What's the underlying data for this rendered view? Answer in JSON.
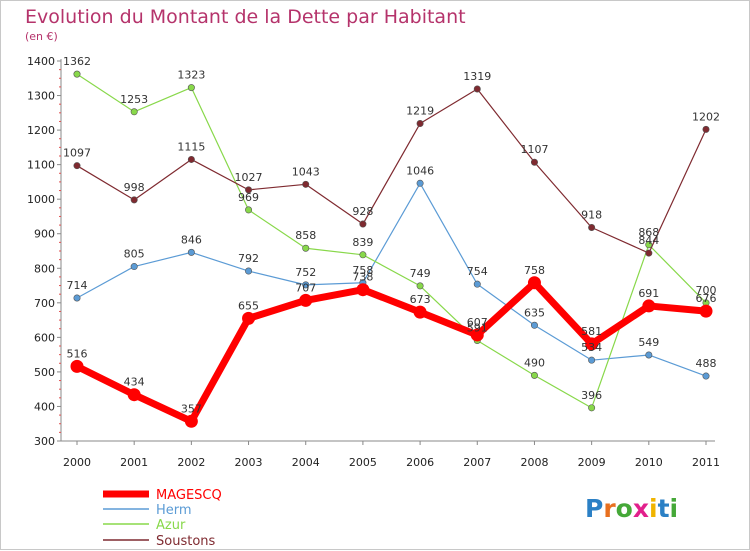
{
  "chart_data": {
    "type": "line",
    "title": "Evolution du Montant de la Dette par Habitant",
    "subtitle": "(en €)",
    "x": [
      "2000",
      "2001",
      "2002",
      "2003",
      "2004",
      "2005",
      "2006",
      "2007",
      "2008",
      "2009",
      "2010",
      "2011"
    ],
    "ylim": [
      300,
      1400
    ],
    "yticks": [
      300,
      400,
      500,
      600,
      700,
      800,
      900,
      1000,
      1100,
      1200,
      1300,
      1400
    ],
    "grid": false,
    "legend_position": "bottom-left",
    "series": [
      {
        "name": "MAGESCQ",
        "color": "#ff0000",
        "values": [
          516,
          434,
          357,
          655,
          707,
          738,
          673,
          607,
          758,
          581,
          691,
          676
        ]
      },
      {
        "name": "Herm",
        "color": "#5b9bd5",
        "values": [
          714,
          805,
          846,
          792,
          752,
          758,
          1046,
          754,
          635,
          534,
          549,
          488
        ]
      },
      {
        "name": "Azur",
        "color": "#88d84a",
        "values": [
          1362,
          1253,
          1323,
          969,
          858,
          839,
          749,
          591,
          490,
          396,
          868,
          700
        ]
      },
      {
        "name": "Soustons",
        "color": "#7f2a30",
        "values": [
          1097,
          998,
          1115,
          1027,
          1043,
          928,
          1219,
          1319,
          1107,
          918,
          844,
          1202
        ]
      }
    ]
  },
  "brand": {
    "letters": [
      "P",
      "r",
      "o",
      "x",
      "i",
      "t",
      "i"
    ],
    "colors": [
      "#2b80c5",
      "#e8701f",
      "#45a838",
      "#e2208c",
      "#f0b400",
      "#2b80c5",
      "#45a838"
    ]
  }
}
